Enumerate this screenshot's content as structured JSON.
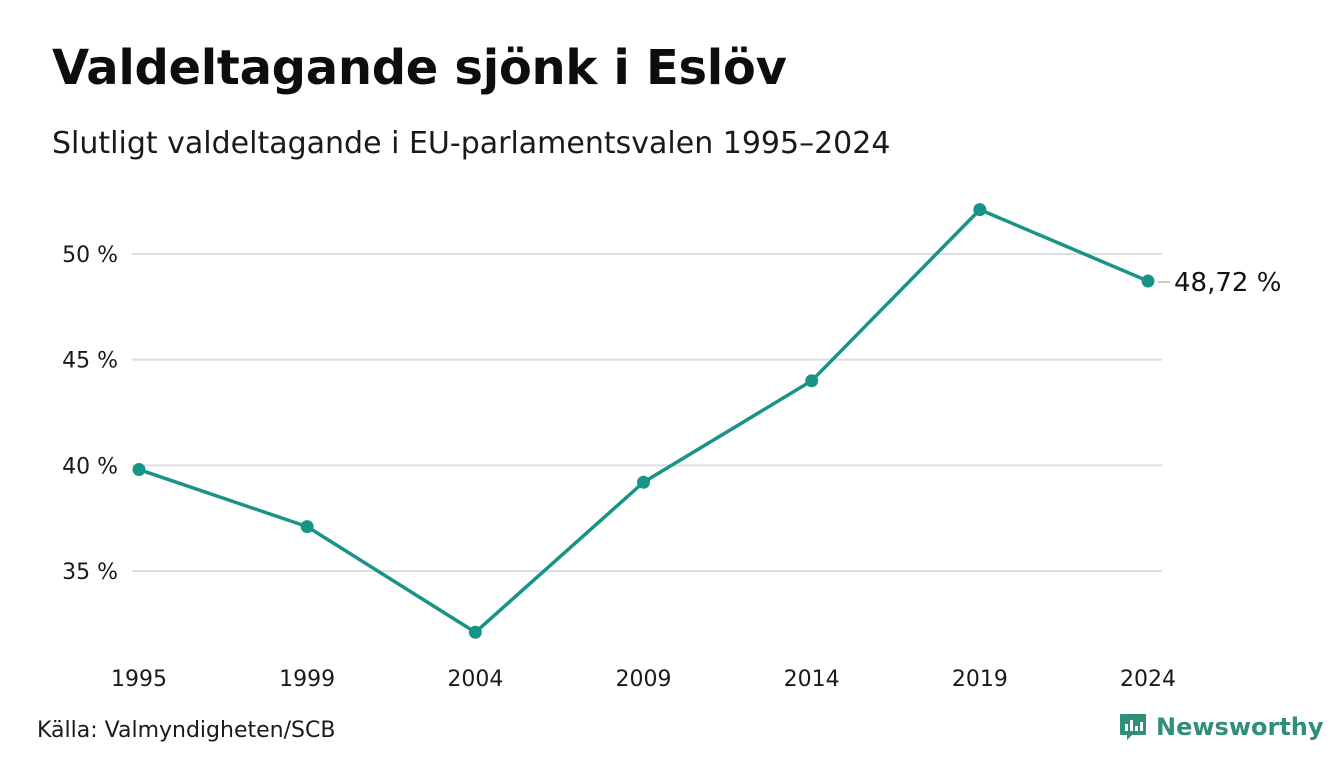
{
  "title": "Valdeltagande sjönk i Eslöv",
  "subtitle": "Slutligt valdeltagande i EU-parlamentsvalen 1995–2024",
  "source": "Källa: Valmyndigheten/SCB",
  "brand": {
    "name": "Newsworthy",
    "icon": "bar-chart-speech-bubble-icon"
  },
  "colors": {
    "line": "#179486",
    "grid": "#dcdde3",
    "text": "#1a1a1a",
    "brand": "#2f8f77"
  },
  "chart_data": {
    "type": "line",
    "x": [
      "1995",
      "1999",
      "2004",
      "2009",
      "2014",
      "2019",
      "2024"
    ],
    "series": [
      {
        "values": [
          39.8,
          37.1,
          32.1,
          39.2,
          44.0,
          52.1,
          48.72
        ]
      }
    ],
    "end_label": "48,72 %",
    "ylim": [
      31,
      53
    ],
    "yticks": [
      35,
      40,
      45,
      50
    ],
    "ytick_labels": [
      "35 %",
      "40 %",
      "45 %",
      "50 %"
    ],
    "grid": true,
    "legend": "none"
  }
}
